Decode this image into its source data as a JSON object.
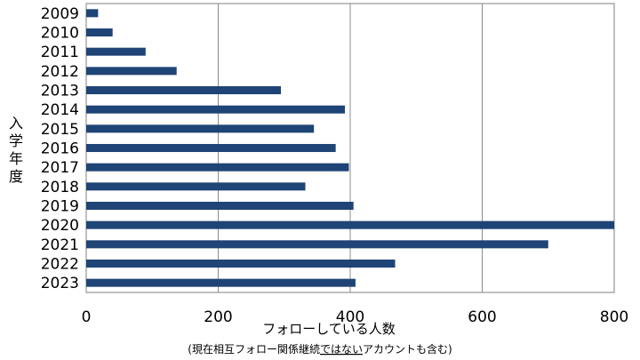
{
  "chart_data": {
    "type": "bar",
    "orientation": "horizontal",
    "categories": [
      "2009",
      "2010",
      "2011",
      "2012",
      "2013",
      "2014",
      "2015",
      "2016",
      "2017",
      "2018",
      "2019",
      "2020",
      "2021",
      "2022",
      "2023"
    ],
    "values": [
      18,
      40,
      90,
      137,
      295,
      392,
      345,
      378,
      398,
      332,
      405,
      800,
      700,
      468,
      408
    ],
    "xlabel": "フォローしている人数",
    "xlabel_sub": "(現在相互フォロー関係継続ではないアカウントも含む)",
    "xlabel_sub_underlined": "ではない",
    "ylabel": "入学年度",
    "xlim": [
      0,
      800
    ],
    "xticks": [
      0,
      200,
      400,
      600,
      800
    ],
    "grid": "vertical",
    "bar_color": "#1f4476"
  }
}
